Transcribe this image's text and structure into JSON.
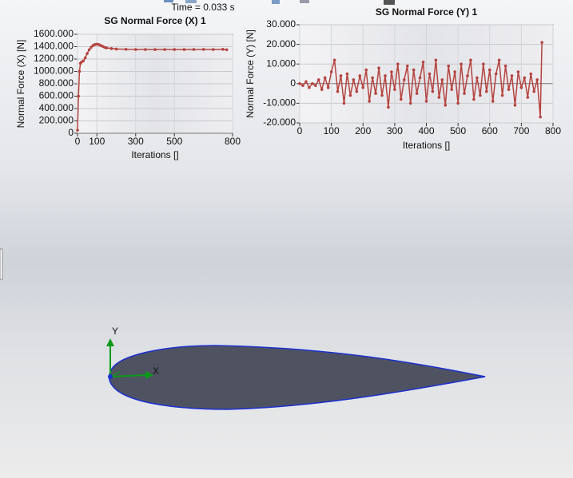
{
  "time_label": "Time = 0.033 s",
  "triad": {
    "x": "X",
    "y": "Y"
  },
  "chart_data": [
    {
      "type": "line",
      "title": "SG Normal Force (X) 1",
      "x_label": "Iterations []",
      "y_label": "Normal Force (X) [N]",
      "grid": true,
      "color": "#b5433f",
      "xlim": [
        0,
        800
      ],
      "xticks": [
        0,
        100,
        300,
        500,
        800
      ],
      "ylim": [
        0,
        1600
      ],
      "yticks": [
        0,
        {
          "value": 200,
          "label": "200.000"
        },
        {
          "value": 400,
          "label": "400.000"
        },
        {
          "value": 600,
          "label": "600.000"
        },
        {
          "value": 800,
          "label": "800.000"
        },
        {
          "value": 1000,
          "label": "1000.000"
        },
        {
          "value": 1200,
          "label": "1200.000"
        },
        {
          "value": 1400,
          "label": "1400.000"
        },
        {
          "value": 1600,
          "label": "1600.000"
        }
      ],
      "x": [
        0,
        5,
        10,
        15,
        20,
        30,
        40,
        50,
        60,
        70,
        80,
        90,
        100,
        110,
        120,
        130,
        140,
        150,
        175,
        200,
        250,
        300,
        350,
        400,
        450,
        500,
        550,
        600,
        650,
        700,
        750,
        770
      ],
      "values": [
        50,
        600,
        1000,
        1130,
        1150,
        1170,
        1220,
        1290,
        1350,
        1390,
        1420,
        1435,
        1440,
        1435,
        1420,
        1405,
        1390,
        1380,
        1370,
        1362,
        1358,
        1355,
        1355,
        1354,
        1355,
        1355,
        1354,
        1355,
        1356,
        1355,
        1357,
        1350
      ]
    },
    {
      "type": "line",
      "title": "SG Normal Force (Y) 1",
      "x_label": "Iterations []",
      "y_label": "Normal Force (Y) [N]",
      "grid": true,
      "color": "#b5433f",
      "xlim": [
        0,
        800
      ],
      "xticks": [
        0,
        100,
        200,
        300,
        400,
        500,
        600,
        700,
        800
      ],
      "ylim": [
        -20,
        30
      ],
      "yticks": [
        {
          "value": -20,
          "label": "-20.000"
        },
        {
          "value": -10,
          "label": "-10.000"
        },
        0,
        {
          "value": 10,
          "label": "10.000"
        },
        {
          "value": 20,
          "label": "20.000"
        },
        {
          "value": 30,
          "label": "30.000"
        }
      ],
      "x": [
        0,
        10,
        20,
        30,
        40,
        50,
        60,
        70,
        80,
        90,
        100,
        110,
        120,
        130,
        140,
        150,
        160,
        170,
        180,
        190,
        200,
        210,
        220,
        230,
        240,
        250,
        260,
        270,
        280,
        290,
        300,
        310,
        320,
        330,
        340,
        350,
        360,
        370,
        380,
        390,
        400,
        410,
        420,
        430,
        440,
        450,
        460,
        470,
        480,
        490,
        500,
        510,
        520,
        530,
        540,
        550,
        560,
        570,
        580,
        590,
        600,
        610,
        620,
        630,
        640,
        650,
        660,
        670,
        680,
        690,
        700,
        710,
        720,
        730,
        740,
        750,
        760,
        765
      ],
      "values": [
        0,
        -1,
        1,
        -2,
        0,
        -1,
        2,
        -3,
        3,
        -2,
        6,
        12,
        -4,
        4,
        -10,
        5,
        -6,
        2,
        -4,
        4,
        -2,
        7,
        -9,
        3,
        -5,
        8,
        -6,
        4,
        -12,
        6,
        -3,
        10,
        -8,
        2,
        9,
        -10,
        7,
        -5,
        3,
        11,
        -9,
        5,
        -4,
        12,
        -7,
        2,
        -11,
        9,
        -3,
        6,
        -10,
        10,
        -5,
        4,
        12,
        -8,
        3,
        -6,
        10,
        -4,
        7,
        -9,
        5,
        12,
        -6,
        9,
        -3,
        4,
        -11,
        6,
        -2,
        3,
        -7,
        5,
        -4,
        2,
        -17,
        21
      ]
    }
  ]
}
